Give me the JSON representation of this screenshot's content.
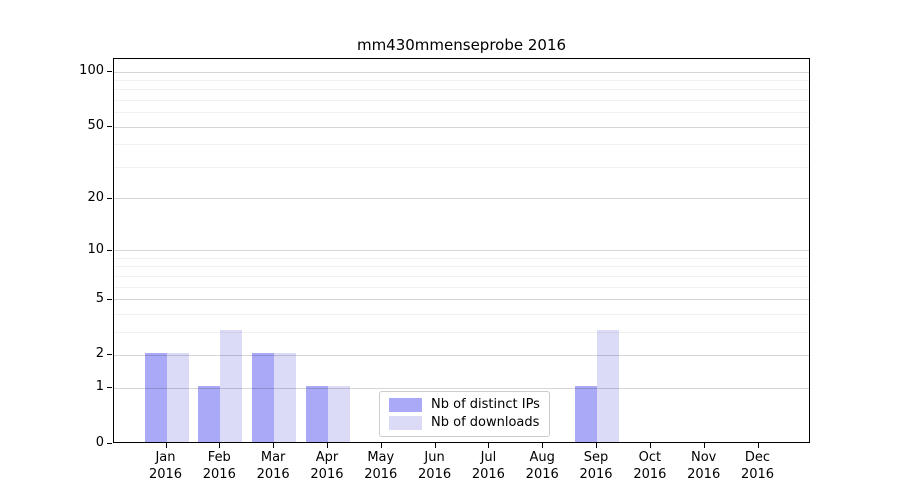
{
  "title": "mm430mmenseprobe 2016",
  "chart_data": {
    "type": "bar",
    "categories": [
      "Jan",
      "Feb",
      "Mar",
      "Apr",
      "May",
      "Jun",
      "Jul",
      "Aug",
      "Sep",
      "Oct",
      "Nov",
      "Dec"
    ],
    "category_year": "2016",
    "series": [
      {
        "name": "Nb of distinct IPs",
        "color": "#a9a9f8",
        "values": [
          2,
          1,
          2,
          1,
          0,
          0,
          0,
          0,
          1,
          0,
          0,
          0
        ]
      },
      {
        "name": "Nb of downloads",
        "color": "#dbdbf8",
        "values": [
          2,
          3,
          2,
          1,
          0,
          0,
          0,
          0,
          3,
          0,
          0,
          0
        ]
      }
    ],
    "xlabel": "",
    "ylabel": "",
    "yscale": "log10(1+value)",
    "y_major_ticks": [
      0,
      1,
      2,
      5,
      10,
      20,
      50,
      100
    ],
    "y_minor_ticks": [
      3,
      4,
      6,
      7,
      8,
      9,
      30,
      40,
      60,
      70,
      80,
      90
    ],
    "ylim": [
      0,
      117
    ],
    "grid": "horizontal",
    "legend_position": "inside-bottom-center"
  }
}
